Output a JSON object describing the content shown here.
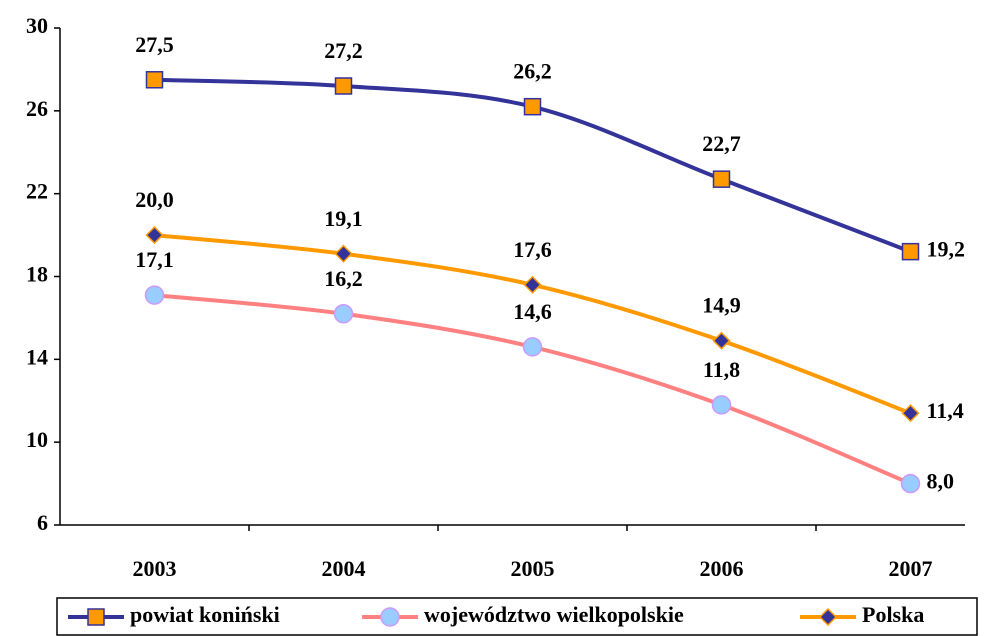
{
  "chart_data": {
    "type": "line",
    "categories": [
      "2003",
      "2004",
      "2005",
      "2006",
      "2007"
    ],
    "ylim": [
      6,
      30
    ],
    "yticks": [
      6,
      10,
      14,
      18,
      22,
      26,
      30
    ],
    "legend": "bottom",
    "series": [
      {
        "name": "powiat koniński",
        "color": "#333399",
        "marker": "square",
        "marker_color": "#ff9900",
        "values": [
          27.5,
          27.2,
          26.2,
          22.7,
          19.2
        ],
        "value_labels": [
          "27,5",
          "27,2",
          "26,2",
          "22,7",
          "19,2"
        ]
      },
      {
        "name": "województwo wielkopolskie",
        "color": "#ff8080",
        "marker": "circle",
        "marker_color": "#99ccff",
        "values": [
          17.1,
          16.2,
          14.6,
          11.8,
          8.0
        ],
        "value_labels": [
          "17,1",
          "16,2",
          "14,6",
          "11,8",
          "8,0"
        ]
      },
      {
        "name": "Polska",
        "color": "#ff9900",
        "marker": "diamond",
        "marker_color": "#333399",
        "values": [
          20.0,
          19.1,
          17.6,
          14.9,
          11.4
        ],
        "value_labels": [
          "20,0",
          "19,1",
          "17,6",
          "14,9",
          "11,4"
        ]
      }
    ]
  }
}
